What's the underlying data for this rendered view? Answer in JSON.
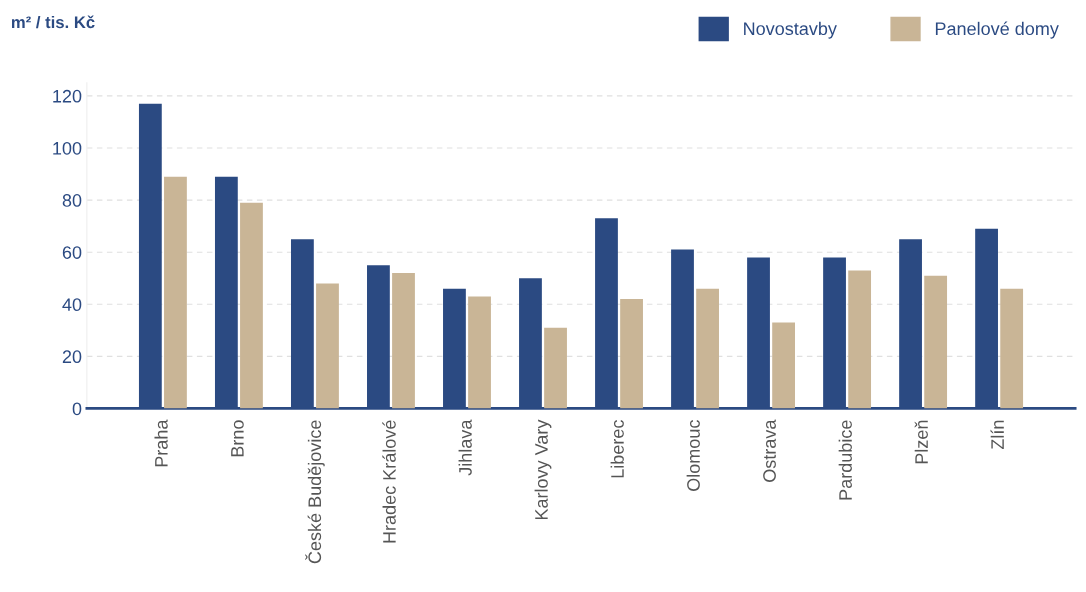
{
  "chart_data": {
    "type": "bar",
    "ylabel": "m² / tis. Kč",
    "categories": [
      "Praha",
      "Brno",
      "České Budějovice",
      "Hradec Králové",
      "Jihlava",
      "Karlovy Vary",
      "Liberec",
      "Olomouc",
      "Ostrava",
      "Pardubice",
      "Plzeň",
      "Zlín"
    ],
    "series": [
      {
        "name": "Novostavby",
        "color": "#2b4a82",
        "values": [
          117,
          89,
          65,
          55,
          46,
          50,
          73,
          61,
          58,
          58,
          65,
          69
        ]
      },
      {
        "name": "Panelové domy",
        "color": "#c9b596",
        "values": [
          89,
          79,
          48,
          52,
          43,
          31,
          42,
          46,
          33,
          53,
          51,
          46
        ]
      }
    ],
    "ylim": [
      0,
      125
    ],
    "yticks": [
      0,
      20,
      40,
      60,
      80,
      100,
      120
    ],
    "grid": "y",
    "legend": "top right"
  }
}
